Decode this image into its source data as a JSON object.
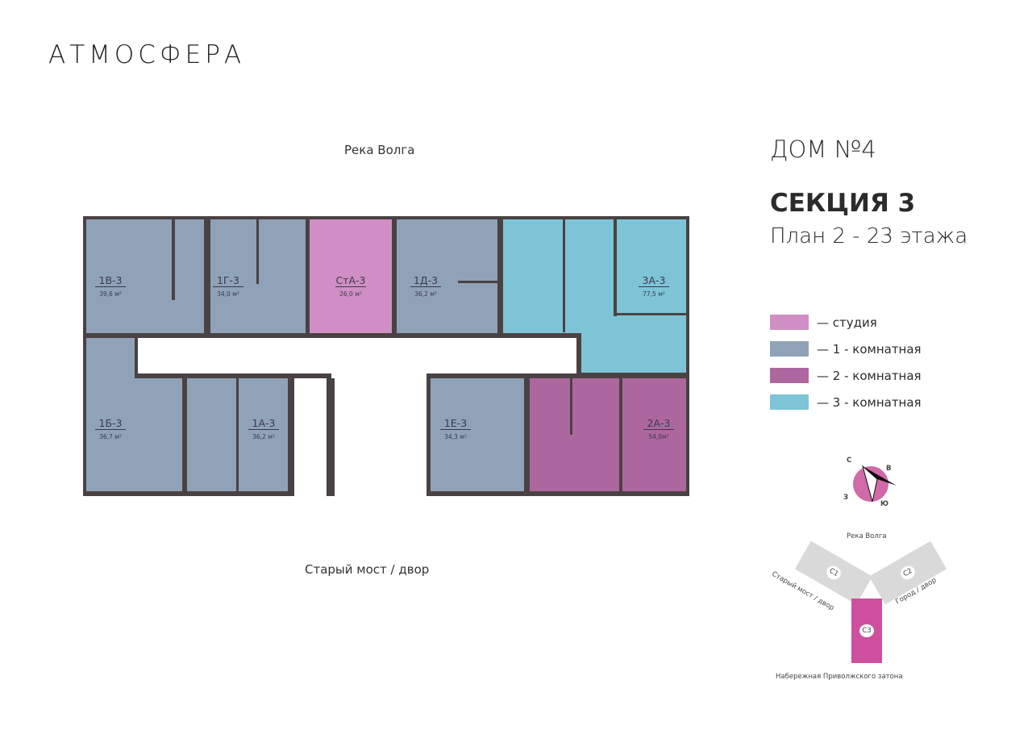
{
  "brand": "АТМОСФЕРА",
  "header": {
    "house": "ДОМ №4",
    "section": "СЕКЦИЯ 3",
    "plan": "План 2 - 23 этажа"
  },
  "orientation": {
    "top": "Река Волга",
    "bottom": "Старый мост / двор"
  },
  "colors": {
    "studio": "#cf8fc4",
    "one": "#8fa2b8",
    "two": "#ad679f",
    "three": "#7ec4d6",
    "wall": "#4a4242"
  },
  "apartments": [
    {
      "id": "1В-3",
      "area": "39,6 м²",
      "type": "one"
    },
    {
      "id": "1Г-3",
      "area": "34,0 м²",
      "type": "one"
    },
    {
      "id": "СтА-3",
      "area": "26,0 м²",
      "type": "studio"
    },
    {
      "id": "1Д-3",
      "area": "36,2 м²",
      "type": "one"
    },
    {
      "id": "3А-3",
      "area": "77,5 м²",
      "type": "three"
    },
    {
      "id": "1Б-3",
      "area": "36,7 м²",
      "type": "one"
    },
    {
      "id": "1А-3",
      "area": "36,2 м²",
      "type": "one"
    },
    {
      "id": "1Е-3",
      "area": "34,3 м²",
      "type": "one"
    },
    {
      "id": "2А-3",
      "area": "54,0м²",
      "type": "two"
    }
  ],
  "legend": [
    {
      "label": "— студия",
      "color": "#cf8fc4"
    },
    {
      "label": "— 1 - комнатная",
      "color": "#8fa2b8"
    },
    {
      "label": "— 2 - комнатная",
      "color": "#ad679f"
    },
    {
      "label": "— 3 - комнатная",
      "color": "#7ec4d6"
    }
  ],
  "compass": {
    "n": "С",
    "e": "В",
    "s": "Ю",
    "w": "З"
  },
  "site": {
    "top": "Река Волга",
    "c1": "С1",
    "c2": "С2",
    "c3": "С3",
    "left": "Старый мост / двор",
    "right": "Город / двор",
    "bottom": "Набережная Приволжского затона"
  }
}
